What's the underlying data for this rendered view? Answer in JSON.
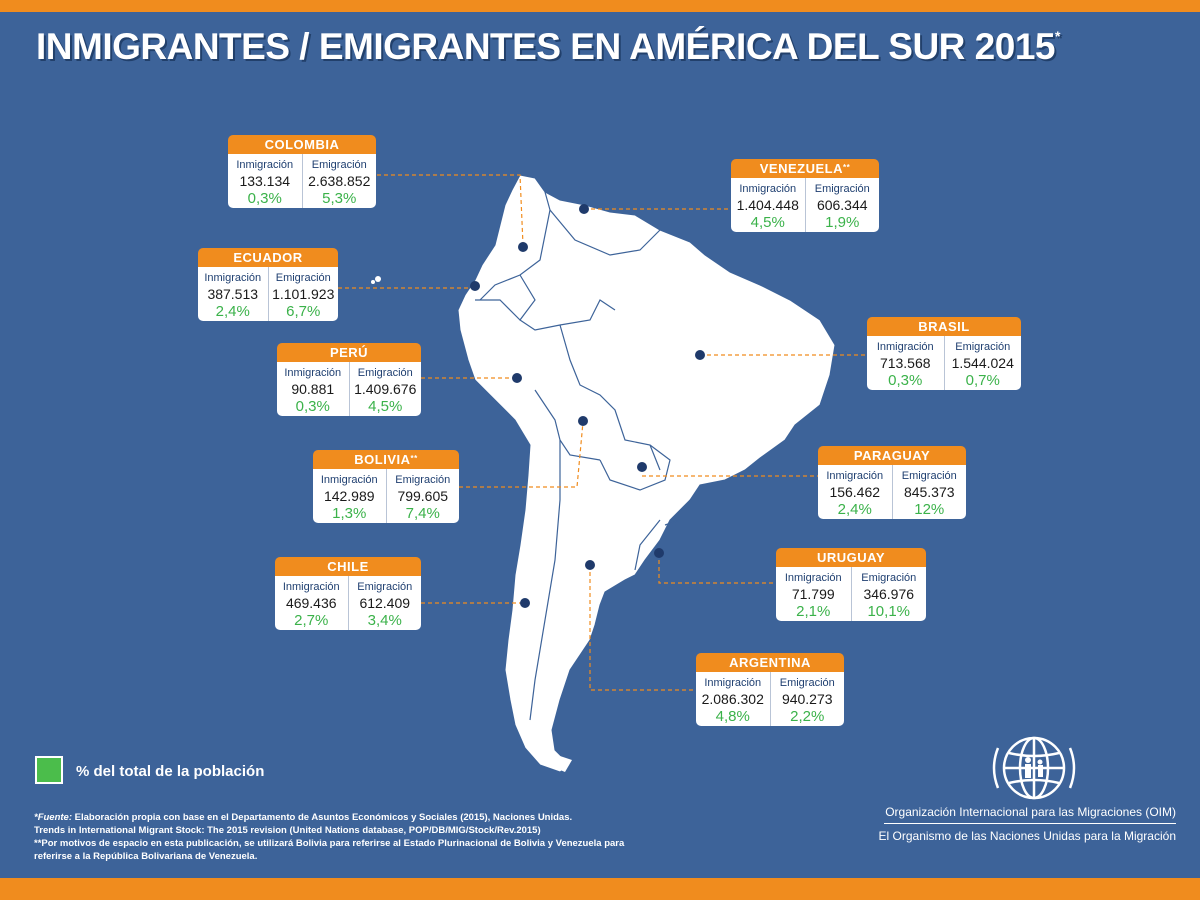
{
  "title": "INMIGRANTES / EMIGRANTES EN AMÉRICA DEL SUR 2015",
  "title_mark": "*",
  "colors": {
    "background": "#3d6399",
    "accent": "#f08c1e",
    "percent": "#3bb24a",
    "land": "#ffffff",
    "dot": "#1f3a6b"
  },
  "labels": {
    "immigration": "Inmigración",
    "emigration": "Emigración"
  },
  "countries": [
    {
      "id": "colombia",
      "name": "COLOMBIA",
      "mark": "",
      "inm": "133.134",
      "emi": "2.638.852",
      "inm_pct": "0,3%",
      "emi_pct": "5,3%"
    },
    {
      "id": "venezuela",
      "name": "VENEZUELA",
      "mark": "**",
      "inm": "1.404.448",
      "emi": "606.344",
      "inm_pct": "4,5%",
      "emi_pct": "1,9%"
    },
    {
      "id": "ecuador",
      "name": "ECUADOR",
      "mark": "",
      "inm": "387.513",
      "emi": "1.101.923",
      "inm_pct": "2,4%",
      "emi_pct": "6,7%"
    },
    {
      "id": "brasil",
      "name": "BRASIL",
      "mark": "",
      "inm": "713.568",
      "emi": "1.544.024",
      "inm_pct": "0,3%",
      "emi_pct": "0,7%"
    },
    {
      "id": "peru",
      "name": "PERÚ",
      "mark": "",
      "inm": "90.881",
      "emi": "1.409.676",
      "inm_pct": "0,3%",
      "emi_pct": "4,5%"
    },
    {
      "id": "paraguay",
      "name": "PARAGUAY",
      "mark": "",
      "inm": "156.462",
      "emi": "845.373",
      "inm_pct": "2,4%",
      "emi_pct": "12%"
    },
    {
      "id": "bolivia",
      "name": "BOLIVIA",
      "mark": "**",
      "inm": "142.989",
      "emi": "799.605",
      "inm_pct": "1,3%",
      "emi_pct": "7,4%"
    },
    {
      "id": "uruguay",
      "name": "URUGUAY",
      "mark": "",
      "inm": "71.799",
      "emi": "346.976",
      "inm_pct": "2,1%",
      "emi_pct": "10,1%"
    },
    {
      "id": "chile",
      "name": "CHILE",
      "mark": "",
      "inm": "469.436",
      "emi": "612.409",
      "inm_pct": "2,7%",
      "emi_pct": "3,4%"
    },
    {
      "id": "argentina",
      "name": "ARGENTINA",
      "mark": "",
      "inm": "2.086.302",
      "emi": "940.273",
      "inm_pct": "4,8%",
      "emi_pct": "2,2%"
    }
  ],
  "legend": {
    "text": "% del total de la población",
    "color": "#4bbd4b"
  },
  "notes": {
    "source_label": "*Fuente:",
    "source_text": " Elaboración propia con base en el Departamento de Asuntos Económicos y Sociales (2015), Naciones Unidas.",
    "source_line2": "Trends in International Migrant Stock: The 2015 revision (United Nations database, POP/DB/MIG/Stock/Rev.2015)",
    "note2": "**Por motivos de espacio en esta publicación, se utilizará Bolivia para referirse al Estado Plurinacional de Bolivia y Venezuela para referirse a la República Bolivariana de Venezuela."
  },
  "org": {
    "line1": "Organización Internacional para las Migraciones (OIM)",
    "line2": "El Organismo de las Naciones Unidas para la Migración",
    "logo_icon": "oim-globe-logo"
  }
}
